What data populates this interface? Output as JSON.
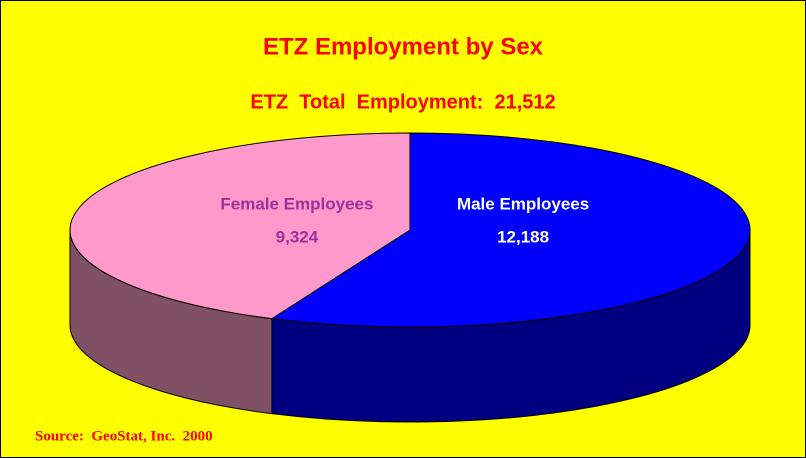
{
  "chart_data": {
    "type": "pie",
    "title": "ETZ Employment by Sex",
    "subtitle": "ETZ  Total  Employment:  21,512",
    "categories": [
      "Male Employees",
      "Female Employees"
    ],
    "values": [
      12188,
      9324
    ],
    "value_labels": [
      "12,188",
      "9,324"
    ],
    "colors": [
      "#0000ff",
      "#ff99cc"
    ],
    "side_colors": [
      "#000080",
      "#805064"
    ],
    "label_colors": [
      "#ffffff",
      "#993399"
    ],
    "source": "Source:  GeoStat, Inc.  2000"
  }
}
